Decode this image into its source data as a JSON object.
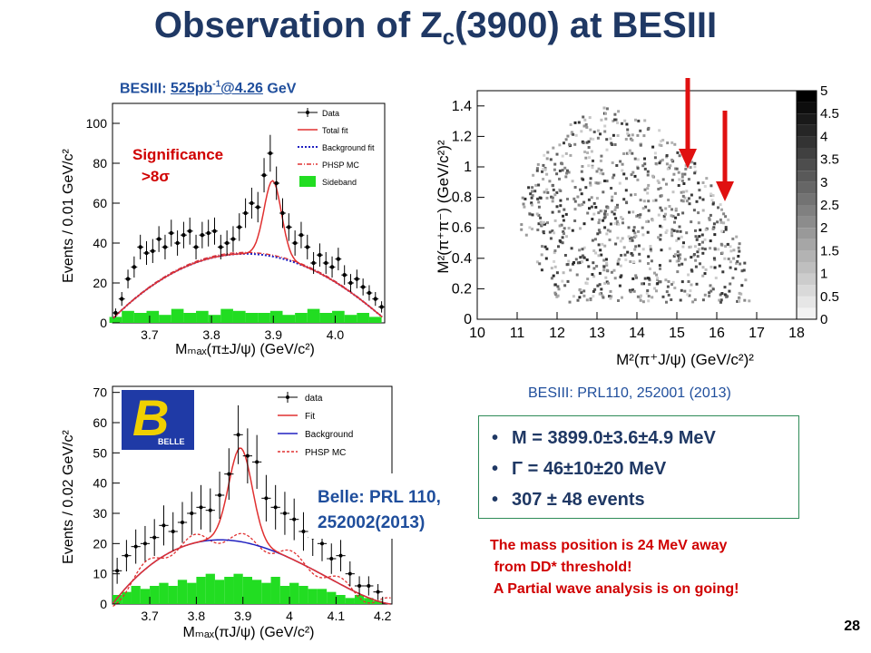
{
  "slide": {
    "title_main": "Observation of Z",
    "title_sub": "c",
    "title_rest": "(3900) at BESIII",
    "page_number": "28"
  },
  "besiii_caption": {
    "prefix": "BESIII: ",
    "lumi": "525pb",
    "lumi_sup": "-1",
    "energy": "@4.26",
    "suffix": " GeV"
  },
  "prl_caption": "BESIII: PRL110, 252001 (2013)",
  "results": {
    "mass": "M = 3899.0±3.6±4.9 MeV",
    "width": "Γ = 46±10±20 MeV",
    "events": "307 ± 48 events"
  },
  "note_lines": [
    "The mass position is 24 MeV away",
    " from DD* threshold!",
    " A Partial wave analysis is on going!"
  ],
  "besiii_plot": {
    "significance_line1": "Significance",
    "significance_line2": ">8σ",
    "ylabel": "Events / 0.01 GeV/c²",
    "xlabel": "Mₘₐₓ(π±J/ψ) (GeV/c²)",
    "legend": [
      "Data",
      "Total fit",
      "Background fit",
      "PHSP MC",
      "Sideband"
    ],
    "xticks": [
      "3.7",
      "3.8",
      "3.9",
      "4.0"
    ],
    "yticks": [
      "0",
      "20",
      "40",
      "60",
      "80",
      "100"
    ]
  },
  "dalitz_plot": {
    "ylabel": "M²(π⁺π⁻) (GeV/c²)²",
    "xlabel": "M²(π⁺J/ψ) (GeV/c²)²",
    "xticks": [
      "10",
      "11",
      "12",
      "13",
      "14",
      "15",
      "16",
      "17",
      "18"
    ],
    "yticks": [
      "0",
      "0.2",
      "0.4",
      "0.6",
      "0.8",
      "1",
      "1.2",
      "1.4"
    ],
    "zticks": [
      "0",
      "0.5",
      "1",
      "1.5",
      "2",
      "2.5",
      "3",
      "3.5",
      "4",
      "4.5",
      "5"
    ]
  },
  "belle_plot": {
    "logo_text": "BELLE",
    "caption_line1": "Belle: PRL 110,",
    "caption_line2": "252002(2013)",
    "ylabel": "Events / 0.02 GeV/c²",
    "xlabel": "Mₘₐₓ(πJ/ψ) (GeV/c²)",
    "legend": [
      "data",
      "Fit",
      "Background",
      "PHSP MC"
    ],
    "xticks": [
      "3.7",
      "3.8",
      "3.9",
      "4",
      "4.1",
      "4.2"
    ],
    "yticks": [
      "0",
      "10",
      "20",
      "30",
      "40",
      "50",
      "60",
      "70"
    ]
  },
  "chart_data": [
    {
      "type": "scatter",
      "title": "",
      "xlabel": "M_max(π±J/ψ) (GeV/c²)",
      "ylabel": "Events / 0.01 GeV/c²",
      "xlim": [
        3.64,
        4.08
      ],
      "ylim": [
        0,
        110
      ],
      "series": [
        {
          "name": "Data",
          "x": [
            3.645,
            3.655,
            3.665,
            3.675,
            3.685,
            3.695,
            3.705,
            3.715,
            3.725,
            3.735,
            3.745,
            3.755,
            3.765,
            3.775,
            3.785,
            3.795,
            3.805,
            3.815,
            3.825,
            3.835,
            3.845,
            3.855,
            3.865,
            3.875,
            3.885,
            3.895,
            3.905,
            3.915,
            3.925,
            3.935,
            3.945,
            3.955,
            3.965,
            3.975,
            3.985,
            3.995,
            4.005,
            4.015,
            4.025,
            4.035,
            4.045,
            4.055,
            4.065,
            4.075
          ],
          "y": [
            5,
            12,
            22,
            28,
            38,
            35,
            36,
            42,
            38,
            45,
            40,
            44,
            46,
            38,
            44,
            45,
            46,
            38,
            40,
            42,
            48,
            55,
            60,
            58,
            74,
            85,
            70,
            55,
            48,
            40,
            44,
            38,
            30,
            34,
            30,
            28,
            32,
            24,
            20,
            22,
            18,
            15,
            12,
            8
          ]
        },
        {
          "name": "Sideband",
          "x": [
            3.645,
            3.665,
            3.685,
            3.705,
            3.725,
            3.745,
            3.765,
            3.785,
            3.805,
            3.825,
            3.845,
            3.865,
            3.885,
            3.905,
            3.925,
            3.945,
            3.965,
            3.985,
            4.005,
            4.025,
            4.045,
            4.065
          ],
          "y": [
            3,
            6,
            5,
            6,
            4,
            7,
            5,
            6,
            4,
            7,
            6,
            5,
            5,
            6,
            4,
            5,
            7,
            5,
            6,
            4,
            5,
            3
          ]
        }
      ]
    },
    {
      "type": "scatter",
      "title": "",
      "xlabel": "M²(π⁺J/ψ) (GeV/c²)²",
      "ylabel": "M²(π⁺π⁻) (GeV/c²)²",
      "xlim": [
        10,
        18
      ],
      "ylim": [
        0,
        1.5
      ],
      "zlim": [
        0,
        5
      ],
      "markers": [
        {
          "x": 15.3,
          "label": ""
        },
        {
          "x": 16.2,
          "label": ""
        }
      ]
    },
    {
      "type": "scatter",
      "title": "",
      "xlabel": "M_max(πJ/ψ) (GeV/c²)",
      "ylabel": "Events / 0.02 GeV/c²",
      "xlim": [
        3.62,
        4.22
      ],
      "ylim": [
        0,
        72
      ],
      "series": [
        {
          "name": "data",
          "x": [
            3.63,
            3.65,
            3.67,
            3.69,
            3.71,
            3.73,
            3.75,
            3.77,
            3.79,
            3.81,
            3.83,
            3.85,
            3.87,
            3.89,
            3.91,
            3.93,
            3.95,
            3.97,
            3.99,
            4.01,
            4.03,
            4.05,
            4.07,
            4.09,
            4.11,
            4.13,
            4.15,
            4.17,
            4.19
          ],
          "y": [
            11,
            16,
            19,
            20,
            22,
            26,
            24,
            27,
            30,
            32,
            31,
            36,
            43,
            56,
            49,
            47,
            35,
            32,
            30,
            28,
            24,
            22,
            20,
            15,
            16,
            10,
            6,
            6,
            4
          ]
        },
        {
          "name": "Fit peak",
          "x": [
            3.895
          ],
          "y": [
            61
          ]
        }
      ]
    }
  ]
}
